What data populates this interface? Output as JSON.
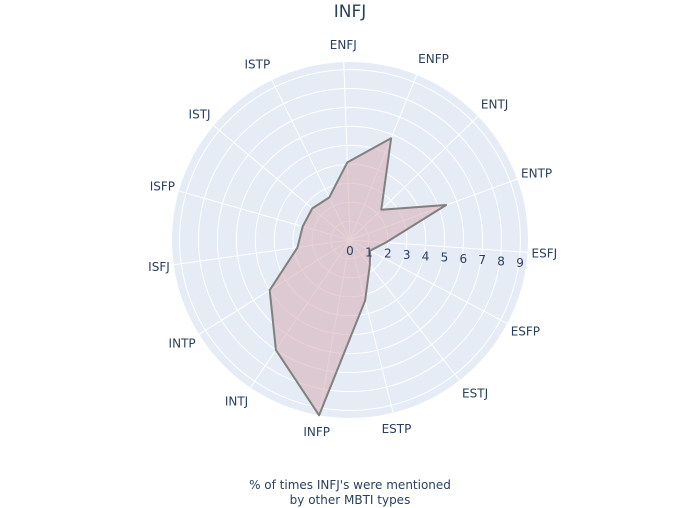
{
  "chart_data": {
    "type": "radar",
    "title": "INFJ",
    "caption_line1": "% of times INFJ's were mentioned",
    "caption_line2": "by other MBTI types",
    "categories": [
      "ESFJ",
      "ENTP",
      "ENTJ",
      "ENFP",
      "ENFJ",
      "ISTP",
      "ISTJ",
      "ISFP",
      "ISFJ",
      "INTP",
      "INTJ",
      "INFP",
      "ESTP",
      "ESTJ",
      "ESFP"
    ],
    "values": [
      1.9,
      5.4,
      2.3,
      5.8,
      4.1,
      2.5,
      2.6,
      2.6,
      2.8,
      5.0,
      7.0,
      9.4,
      3.3,
      1.7,
      1.2
    ],
    "radial_range": [
      0,
      9.4
    ],
    "radial_ticks": [
      0,
      1,
      2,
      3,
      4,
      5,
      6,
      7,
      8,
      9
    ],
    "fill_color": "#d4a5ad",
    "line_color": "#808080",
    "polar_bg": "#e5ecf6",
    "grid_color": "#ffffff"
  }
}
